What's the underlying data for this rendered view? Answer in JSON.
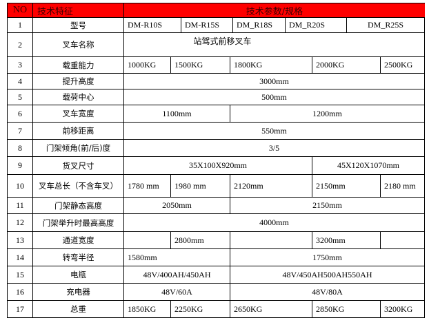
{
  "header": {
    "no": "NO",
    "feature": "技术特征",
    "spec": "技术参数/规格",
    "color": "#ff0000"
  },
  "rows": [
    {
      "no": "1",
      "feature": "型号",
      "values": [
        "DM-R10S",
        "DM-R15S",
        "DM_R18S",
        "DM_R20S",
        "DM_R25S"
      ]
    },
    {
      "no": "2",
      "feature": "叉车名称",
      "values": [
        "站驾式前移叉车"
      ]
    },
    {
      "no": "3",
      "feature": "载重能力",
      "values": [
        "1000KG",
        "1500KG",
        "1800KG",
        "2000KG",
        "2500KG"
      ]
    },
    {
      "no": "4",
      "feature": "提升高度",
      "values": [
        "3000mm"
      ]
    },
    {
      "no": "5",
      "feature": "载荷中心",
      "values": [
        "500mm"
      ]
    },
    {
      "no": "6",
      "feature": "叉车宽度",
      "values": [
        "1100mm",
        "1200mm"
      ]
    },
    {
      "no": "7",
      "feature": "前移距离",
      "values": [
        "550mm"
      ]
    },
    {
      "no": "8",
      "feature": "门架倾角(前/后)度",
      "values": [
        "3/5"
      ]
    },
    {
      "no": "9",
      "feature": "货叉尺寸",
      "values": [
        "35X100X920mm",
        "45X120X1070mm"
      ]
    },
    {
      "no": "10",
      "feature": "叉车总长（不含车叉）",
      "values": [
        "1780 mm",
        "1980 mm",
        "2120mm",
        "2150mm",
        "2180 mm"
      ]
    },
    {
      "no": "11",
      "feature": "门架静态高度",
      "values": [
        "2050mm",
        "2150mm"
      ]
    },
    {
      "no": "12",
      "feature": "门架举升时最高高度",
      "values": [
        "4000mm"
      ]
    },
    {
      "no": "13",
      "feature": "通道宽度",
      "values": [
        "",
        "2800mm",
        "",
        "3200mm",
        ""
      ]
    },
    {
      "no": "14",
      "feature": "转弯半径",
      "values": [
        "1580mm",
        "1750mm"
      ]
    },
    {
      "no": "15",
      "feature": "电瓶",
      "values": [
        "48V/400AH/450AH",
        "48V/450AH500AH550AH"
      ]
    },
    {
      "no": "16",
      "feature": "充电器",
      "values": [
        "48V/60A",
        "48V/80A"
      ]
    },
    {
      "no": "17",
      "feature": "总重",
      "values": [
        "1850KG",
        "2250KG",
        "2650KG",
        "2850KG",
        "3200KG"
      ]
    }
  ]
}
